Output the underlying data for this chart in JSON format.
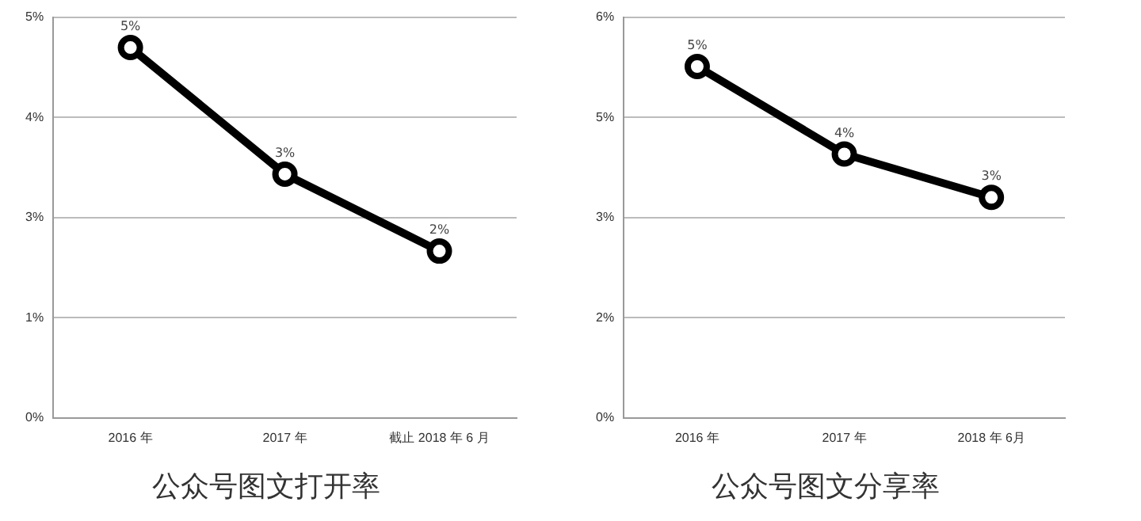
{
  "chart_data": [
    {
      "type": "line",
      "title": "公众号图文打开率",
      "categories": [
        "2016 年",
        "2017 年",
        "截止 2018 年 6 月"
      ],
      "series": [
        {
          "color": "#000000",
          "values": [
            4.62,
            3.04,
            2.08
          ],
          "value_labels": [
            "5%",
            "3%",
            "2%"
          ]
        }
      ],
      "ylim": [
        0,
        5
      ],
      "yticks": [
        {
          "value": 0,
          "label": "0%"
        },
        {
          "value": 1.25,
          "label": "1%"
        },
        {
          "value": 2.5,
          "label": "3%"
        },
        {
          "value": 3.75,
          "label": "4%"
        },
        {
          "value": 5,
          "label": "5%"
        }
      ],
      "grid": "y",
      "marker": "circle",
      "line_style": "solid"
    },
    {
      "type": "line",
      "title": "公众号图文分享率",
      "categories": [
        "2016 年",
        "2017 年",
        "2018 年 6月"
      ],
      "series": [
        {
          "color": "#000000",
          "values": [
            5.26,
            3.95,
            3.3
          ],
          "value_labels": [
            "5%",
            "4%",
            "3%"
          ]
        }
      ],
      "ylim": [
        0,
        6
      ],
      "yticks": [
        {
          "value": 0,
          "label": "0%"
        },
        {
          "value": 1.5,
          "label": "2%"
        },
        {
          "value": 3,
          "label": "3%"
        },
        {
          "value": 4.5,
          "label": "5%"
        },
        {
          "value": 6,
          "label": "6%"
        }
      ],
      "grid": "y",
      "marker": "circle",
      "line_style": "solid"
    }
  ]
}
